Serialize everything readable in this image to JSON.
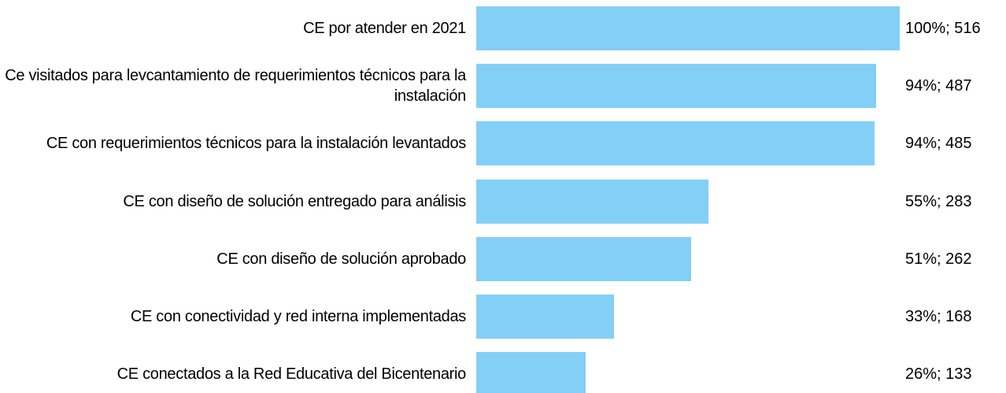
{
  "chart_data": {
    "type": "bar",
    "orientation": "horizontal",
    "categories": [
      "CE por atender en 2021",
      "Ce visitados para levcantamiento de requerimientos técnicos para la instalación",
      "CE con requerimientos técnicos para la instalación levantados",
      "CE con diseño de solución entregado para análisis",
      "CE con diseño de solución aprobado",
      "CE con conectividad y red interna implementadas",
      "CE conectados a la Red Educativa del Bicentenario"
    ],
    "values": [
      516,
      487,
      485,
      283,
      262,
      168,
      133
    ],
    "value_labels": [
      "100%; 516",
      "94%; 487",
      "94%; 485",
      "55%; 283",
      "51%; 262",
      "33%; 168",
      "26%; 133"
    ],
    "color": "#84cff6"
  }
}
